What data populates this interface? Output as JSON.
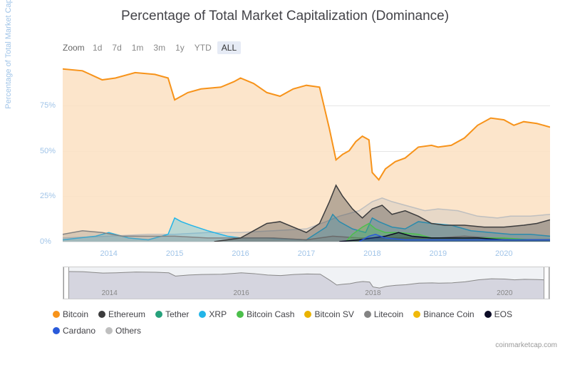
{
  "title": "Percentage of Total Market Capitalization (Dominance)",
  "zoom": {
    "label": "Zoom",
    "buttons": [
      "1d",
      "7d",
      "1m",
      "3m",
      "1y",
      "YTD",
      "ALL"
    ],
    "active": "ALL"
  },
  "yaxis": {
    "label": "Percentage of Total Market Cap",
    "ticks": [
      0,
      25,
      50,
      75
    ],
    "tick_suffix": "%",
    "min": 0,
    "max": 100,
    "grid_color": "#e6e6e6",
    "label_color": "#a0c4e8"
  },
  "xaxis": {
    "years": [
      2014,
      2015,
      2016,
      2017,
      2018,
      2019,
      2020
    ],
    "min": 2013.3,
    "max": 2020.7
  },
  "navigator": {
    "years": [
      2014,
      2016,
      2018,
      2020
    ]
  },
  "legend": [
    {
      "name": "Bitcoin",
      "color": "#f7931a"
    },
    {
      "name": "Ethereum",
      "color": "#3c3c3d"
    },
    {
      "name": "Tether",
      "color": "#26a17b"
    },
    {
      "name": "XRP",
      "color": "#23b5e8"
    },
    {
      "name": "Bitcoin Cash",
      "color": "#4cbf4b"
    },
    {
      "name": "Bitcoin SV",
      "color": "#eab300"
    },
    {
      "name": "Litecoin",
      "color": "#838383"
    },
    {
      "name": "Binance Coin",
      "color": "#f0b90b"
    },
    {
      "name": "EOS",
      "color": "#0b0b25"
    },
    {
      "name": "Cardano",
      "color": "#2a5ada"
    },
    {
      "name": "Others",
      "color": "#bfbfbf"
    }
  ],
  "series": {
    "bitcoin": {
      "color": "#f7931a",
      "fill": "#fbe0c2",
      "fill_opacity": 0.85,
      "points": [
        [
          2013.3,
          95
        ],
        [
          2013.6,
          94
        ],
        [
          2013.9,
          89
        ],
        [
          2014.1,
          90
        ],
        [
          2014.4,
          93
        ],
        [
          2014.7,
          92
        ],
        [
          2014.9,
          90
        ],
        [
          2015.0,
          78
        ],
        [
          2015.2,
          82
        ],
        [
          2015.4,
          84
        ],
        [
          2015.7,
          85
        ],
        [
          2015.9,
          88
        ],
        [
          2016.0,
          90
        ],
        [
          2016.2,
          87
        ],
        [
          2016.4,
          82
        ],
        [
          2016.6,
          80
        ],
        [
          2016.8,
          84
        ],
        [
          2017.0,
          86
        ],
        [
          2017.2,
          85
        ],
        [
          2017.35,
          62
        ],
        [
          2017.45,
          45
        ],
        [
          2017.55,
          48
        ],
        [
          2017.65,
          50
        ],
        [
          2017.75,
          55
        ],
        [
          2017.85,
          58
        ],
        [
          2017.95,
          56
        ],
        [
          2018.0,
          38
        ],
        [
          2018.1,
          34
        ],
        [
          2018.2,
          40
        ],
        [
          2018.35,
          44
        ],
        [
          2018.5,
          46
        ],
        [
          2018.7,
          52
        ],
        [
          2018.9,
          53
        ],
        [
          2019.0,
          52
        ],
        [
          2019.2,
          53
        ],
        [
          2019.4,
          57
        ],
        [
          2019.6,
          64
        ],
        [
          2019.8,
          68
        ],
        [
          2020.0,
          67
        ],
        [
          2020.15,
          64
        ],
        [
          2020.3,
          66
        ],
        [
          2020.5,
          65
        ],
        [
          2020.7,
          63
        ]
      ]
    },
    "ethereum": {
      "color": "#3c3c3d",
      "fill": "#3c3c3d",
      "fill_opacity": 0.35,
      "points": [
        [
          2015.6,
          0
        ],
        [
          2015.8,
          1
        ],
        [
          2016.0,
          2
        ],
        [
          2016.2,
          6
        ],
        [
          2016.4,
          10
        ],
        [
          2016.6,
          11
        ],
        [
          2016.8,
          8
        ],
        [
          2017.0,
          5
        ],
        [
          2017.2,
          10
        ],
        [
          2017.35,
          22
        ],
        [
          2017.45,
          31
        ],
        [
          2017.55,
          25
        ],
        [
          2017.7,
          18
        ],
        [
          2017.85,
          13
        ],
        [
          2018.0,
          18
        ],
        [
          2018.15,
          20
        ],
        [
          2018.3,
          15
        ],
        [
          2018.5,
          17
        ],
        [
          2018.7,
          14
        ],
        [
          2018.9,
          10
        ],
        [
          2019.1,
          9
        ],
        [
          2019.4,
          9
        ],
        [
          2019.7,
          8
        ],
        [
          2020.0,
          8
        ],
        [
          2020.3,
          9
        ],
        [
          2020.5,
          10
        ],
        [
          2020.7,
          12
        ]
      ]
    },
    "xrp": {
      "color": "#23b5e8",
      "fill": "#23b5e8",
      "fill_opacity": 0.3,
      "points": [
        [
          2013.3,
          1
        ],
        [
          2013.8,
          3
        ],
        [
          2014.0,
          5
        ],
        [
          2014.3,
          2
        ],
        [
          2014.6,
          1
        ],
        [
          2014.9,
          4
        ],
        [
          2015.0,
          13
        ],
        [
          2015.1,
          11
        ],
        [
          2015.25,
          9
        ],
        [
          2015.5,
          6
        ],
        [
          2015.8,
          3
        ],
        [
          2016.0,
          2
        ],
        [
          2016.4,
          2
        ],
        [
          2017.0,
          1
        ],
        [
          2017.3,
          8
        ],
        [
          2017.4,
          15
        ],
        [
          2017.5,
          11
        ],
        [
          2017.7,
          7
        ],
        [
          2017.9,
          5
        ],
        [
          2018.0,
          13
        ],
        [
          2018.1,
          11
        ],
        [
          2018.3,
          8
        ],
        [
          2018.5,
          7
        ],
        [
          2018.7,
          11
        ],
        [
          2018.9,
          10
        ],
        [
          2019.2,
          9
        ],
        [
          2019.5,
          6
        ],
        [
          2019.8,
          5
        ],
        [
          2020.1,
          4
        ],
        [
          2020.4,
          4
        ],
        [
          2020.7,
          3
        ]
      ]
    },
    "bitcoin_cash": {
      "color": "#4cbf4b",
      "fill": "#4cbf4b",
      "fill_opacity": 0.3,
      "points": [
        [
          2017.6,
          0
        ],
        [
          2017.7,
          4
        ],
        [
          2017.85,
          8
        ],
        [
          2017.95,
          10
        ],
        [
          2018.05,
          7
        ],
        [
          2018.2,
          5
        ],
        [
          2018.4,
          5
        ],
        [
          2018.7,
          4
        ],
        [
          2018.9,
          2
        ],
        [
          2019.2,
          2
        ],
        [
          2019.6,
          2
        ],
        [
          2020.0,
          2
        ],
        [
          2020.4,
          1
        ],
        [
          2020.7,
          1
        ]
      ]
    },
    "litecoin": {
      "color": "#838383",
      "fill": "#838383",
      "fill_opacity": 0.3,
      "points": [
        [
          2013.3,
          4
        ],
        [
          2013.6,
          6
        ],
        [
          2013.9,
          5
        ],
        [
          2014.2,
          3
        ],
        [
          2014.6,
          3
        ],
        [
          2015.0,
          3
        ],
        [
          2015.5,
          2
        ],
        [
          2016.0,
          2
        ],
        [
          2016.5,
          2
        ],
        [
          2017.0,
          1
        ],
        [
          2017.4,
          3
        ],
        [
          2017.8,
          2
        ],
        [
          2018.1,
          2
        ],
        [
          2018.5,
          2
        ],
        [
          2019.0,
          2
        ],
        [
          2019.4,
          3
        ],
        [
          2019.8,
          2
        ],
        [
          2020.2,
          1
        ],
        [
          2020.7,
          1
        ]
      ]
    },
    "others": {
      "color": "#bfbfbf",
      "fill": "#bfbfbf",
      "fill_opacity": 0.35,
      "points": [
        [
          2013.3,
          2
        ],
        [
          2014.0,
          3
        ],
        [
          2014.6,
          4
        ],
        [
          2015.0,
          4
        ],
        [
          2015.5,
          5
        ],
        [
          2016.0,
          5
        ],
        [
          2016.5,
          6
        ],
        [
          2017.0,
          7
        ],
        [
          2017.3,
          11
        ],
        [
          2017.5,
          14
        ],
        [
          2017.8,
          17
        ],
        [
          2018.0,
          22
        ],
        [
          2018.15,
          24
        ],
        [
          2018.3,
          22
        ],
        [
          2018.5,
          20
        ],
        [
          2018.8,
          17
        ],
        [
          2019.0,
          18
        ],
        [
          2019.3,
          17
        ],
        [
          2019.6,
          14
        ],
        [
          2019.9,
          13
        ],
        [
          2020.1,
          14
        ],
        [
          2020.4,
          14
        ],
        [
          2020.7,
          15
        ]
      ]
    },
    "eos": {
      "color": "#0b0b25",
      "fill": "#0b0b25",
      "fill_opacity": 0.3,
      "points": [
        [
          2017.5,
          0
        ],
        [
          2017.8,
          1
        ],
        [
          2018.0,
          2
        ],
        [
          2018.2,
          3
        ],
        [
          2018.4,
          5
        ],
        [
          2018.6,
          3
        ],
        [
          2018.9,
          2
        ],
        [
          2019.2,
          2
        ],
        [
          2019.6,
          2
        ],
        [
          2020.0,
          1
        ],
        [
          2020.4,
          1
        ],
        [
          2020.7,
          1
        ]
      ]
    },
    "cardano": {
      "color": "#2a5ada",
      "fill": "#2a5ada",
      "fill_opacity": 0.3,
      "points": [
        [
          2017.8,
          0
        ],
        [
          2017.95,
          3
        ],
        [
          2018.05,
          4
        ],
        [
          2018.2,
          2
        ],
        [
          2018.5,
          1
        ],
        [
          2019.0,
          1
        ],
        [
          2019.5,
          1
        ],
        [
          2020.0,
          1
        ],
        [
          2020.5,
          1
        ],
        [
          2020.7,
          1
        ]
      ]
    }
  },
  "attribution": "coinmarketcap.com",
  "chart": {
    "stroke_width": 1.5,
    "bitcoin_stroke_width": 2
  }
}
